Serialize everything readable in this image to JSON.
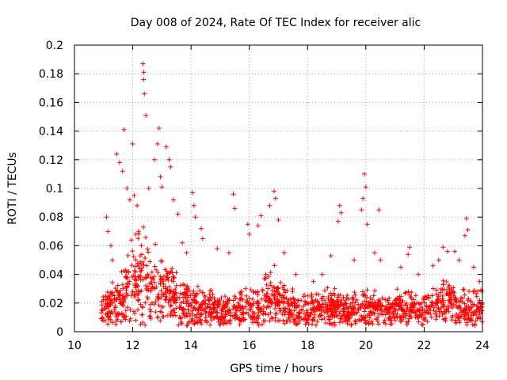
{
  "chart_data": {
    "type": "scatter",
    "title": "Day 008 of 2024, Rate Of TEC Index for receiver alic",
    "xlabel": "GPS time / hours",
    "ylabel": "ROTI / TECUs",
    "xlim": [
      10,
      24
    ],
    "ylim": [
      0,
      0.2
    ],
    "xticks": [
      "10",
      "12",
      "14",
      "16",
      "18",
      "20",
      "22",
      "24"
    ],
    "xtick_values": [
      10,
      12,
      14,
      16,
      18,
      20,
      22,
      24
    ],
    "yticks": [
      "0",
      "0.02",
      "0.04",
      "0.06",
      "0.08",
      "0.1",
      "0.12",
      "0.14",
      "0.16",
      "0.18",
      "0.2"
    ],
    "ytick_values": [
      0,
      0.02,
      0.04,
      0.06,
      0.08,
      0.1,
      0.12,
      0.14,
      0.16,
      0.18,
      0.2
    ],
    "grid": true,
    "marker": "+",
    "color": "#ff0000",
    "data_range": {
      "x": [
        10.9,
        24.0
      ],
      "y": [
        0.003,
        0.187
      ]
    },
    "series": [
      {
        "name": "ROTI",
        "points": [
          [
            12.35,
            0.187
          ],
          [
            12.38,
            0.181
          ],
          [
            12.37,
            0.176
          ],
          [
            12.4,
            0.166
          ],
          [
            12.45,
            0.151
          ],
          [
            11.7,
            0.141
          ],
          [
            12.9,
            0.142
          ],
          [
            13.15,
            0.129
          ],
          [
            12.0,
            0.131
          ],
          [
            11.45,
            0.124
          ],
          [
            11.55,
            0.118
          ],
          [
            12.85,
            0.131
          ],
          [
            13.25,
            0.12
          ],
          [
            13.3,
            0.115
          ],
          [
            12.75,
            0.12
          ],
          [
            11.65,
            0.112
          ],
          [
            12.95,
            0.108
          ],
          [
            13.0,
            0.101
          ],
          [
            12.55,
            0.1
          ],
          [
            11.8,
            0.1
          ],
          [
            11.9,
            0.092
          ],
          [
            12.05,
            0.095
          ],
          [
            12.15,
            0.088
          ],
          [
            13.4,
            0.092
          ],
          [
            13.55,
            0.082
          ],
          [
            14.05,
            0.097
          ],
          [
            14.1,
            0.088
          ],
          [
            14.15,
            0.08
          ],
          [
            15.45,
            0.096
          ],
          [
            15.5,
            0.086
          ],
          [
            16.85,
            0.098
          ],
          [
            16.9,
            0.093
          ],
          [
            16.7,
            0.088
          ],
          [
            16.4,
            0.081
          ],
          [
            16.3,
            0.074
          ],
          [
            17.0,
            0.078
          ],
          [
            14.35,
            0.072
          ],
          [
            14.4,
            0.065
          ],
          [
            15.95,
            0.075
          ],
          [
            16.0,
            0.068
          ],
          [
            19.1,
            0.088
          ],
          [
            19.15,
            0.083
          ],
          [
            19.05,
            0.077
          ],
          [
            19.95,
            0.11
          ],
          [
            20.0,
            0.101
          ],
          [
            19.9,
            0.093
          ],
          [
            19.85,
            0.085
          ],
          [
            20.05,
            0.075
          ],
          [
            20.45,
            0.085
          ],
          [
            21.5,
            0.059
          ],
          [
            21.45,
            0.054
          ],
          [
            22.65,
            0.059
          ],
          [
            22.8,
            0.056
          ],
          [
            23.05,
            0.056
          ],
          [
            23.45,
            0.079
          ],
          [
            23.5,
            0.071
          ],
          [
            23.4,
            0.067
          ],
          [
            18.8,
            0.053
          ],
          [
            18.5,
            0.04
          ],
          [
            11.1,
            0.08
          ],
          [
            11.15,
            0.07
          ],
          [
            11.25,
            0.06
          ],
          [
            11.3,
            0.05
          ],
          [
            12.2,
            0.07
          ],
          [
            12.3,
            0.06
          ],
          [
            13.7,
            0.062
          ],
          [
            13.85,
            0.055
          ],
          [
            14.9,
            0.058
          ],
          [
            15.3,
            0.055
          ],
          [
            17.2,
            0.055
          ],
          [
            17.6,
            0.04
          ],
          [
            18.2,
            0.035
          ],
          [
            19.6,
            0.05
          ],
          [
            20.3,
            0.055
          ],
          [
            20.5,
            0.05
          ],
          [
            21.2,
            0.045
          ],
          [
            21.8,
            0.04
          ],
          [
            22.3,
            0.046
          ],
          [
            22.5,
            0.05
          ],
          [
            23.2,
            0.05
          ],
          [
            23.7,
            0.045
          ],
          [
            23.9,
            0.035
          ]
        ]
      }
    ]
  }
}
